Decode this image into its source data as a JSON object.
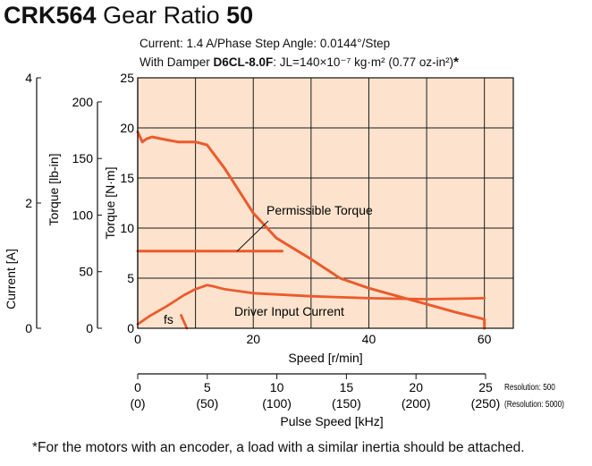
{
  "header": {
    "model": "CRK564",
    "gear_ratio_label": "Gear Ratio",
    "gear_ratio_value": "50",
    "current_line": "Current: 1.4 A/Phase  Step Angle: 0.0144°/Step",
    "damper_prefix": "With Damper",
    "damper_model": "D6CL-8.0F",
    "damper_inertia": ": JL=140×10⁻⁷ kg·m² (0.77 oz-in²)",
    "damper_mark": "*"
  },
  "footnote": "*For the motors with an encoder, a load with a similar inertia should be attached.",
  "colors": {
    "plot_bg": "#fde3cd",
    "curve": "#ec5a2c",
    "grid": "#1a1a1a"
  },
  "chart_data": {
    "type": "line",
    "xlabel": "Speed [r/min]",
    "x_ticks": [
      "0",
      "20",
      "40",
      "60"
    ],
    "xlim": [
      0,
      65
    ],
    "axes": {
      "torque_nm": {
        "label": "Torque [N·m]",
        "ticks": [
          "0",
          "5",
          "10",
          "15",
          "20",
          "25"
        ],
        "lim": [
          0,
          25
        ]
      },
      "torque_lbin": {
        "label": "Torque [lb-in]",
        "ticks": [
          "0",
          "50",
          "100",
          "150",
          "200"
        ],
        "lim": [
          0,
          221.3
        ]
      },
      "current_a": {
        "label": "Current [A]",
        "ticks": [
          "0",
          "2",
          "4"
        ],
        "lim": [
          0,
          4
        ]
      }
    },
    "pulse_axis": {
      "label": "Pulse Speed [kHz]",
      "ticks": [
        "0",
        "5",
        "10",
        "15",
        "20",
        "25"
      ],
      "ticks_alt": [
        "(0)",
        "(50)",
        "(100)",
        "(150)",
        "(200)",
        "(250)"
      ],
      "resolution_note": "Resolution: 500",
      "resolution_note_alt": "(Resolution: 5000)"
    },
    "series": [
      {
        "id": "pullout",
        "axis": "torque_nm",
        "x": [
          0,
          0.8,
          1.5,
          2.5,
          5,
          7,
          10,
          12,
          15,
          20,
          24,
          30,
          35,
          40,
          45,
          50,
          55,
          60,
          60
        ],
        "y": [
          19.6,
          18.6,
          18.9,
          19.1,
          18.8,
          18.6,
          18.6,
          18.3,
          16.0,
          11.5,
          9.0,
          6.9,
          5.0,
          4.0,
          3.2,
          2.4,
          1.6,
          0.9,
          0
        ]
      },
      {
        "id": "permissible",
        "axis": "torque_nm",
        "x": [
          0,
          25
        ],
        "y": [
          7.7,
          7.7
        ]
      },
      {
        "id": "current",
        "axis": "torque_nm",
        "x": [
          0,
          2,
          5,
          8,
          10,
          12,
          13,
          15,
          20,
          30,
          40,
          50,
          60
        ],
        "y": [
          0.4,
          1.2,
          2.2,
          3.3,
          3.9,
          4.3,
          4.2,
          3.9,
          3.5,
          3.2,
          3.0,
          2.9,
          3.0
        ]
      },
      {
        "id": "fs",
        "axis": "torque_nm",
        "x": [
          7.5,
          8.5
        ],
        "y": [
          1.3,
          0
        ]
      }
    ],
    "annotations": {
      "permissible": "Permissible Torque",
      "current": "Driver Input Current",
      "fs": "fs"
    }
  }
}
